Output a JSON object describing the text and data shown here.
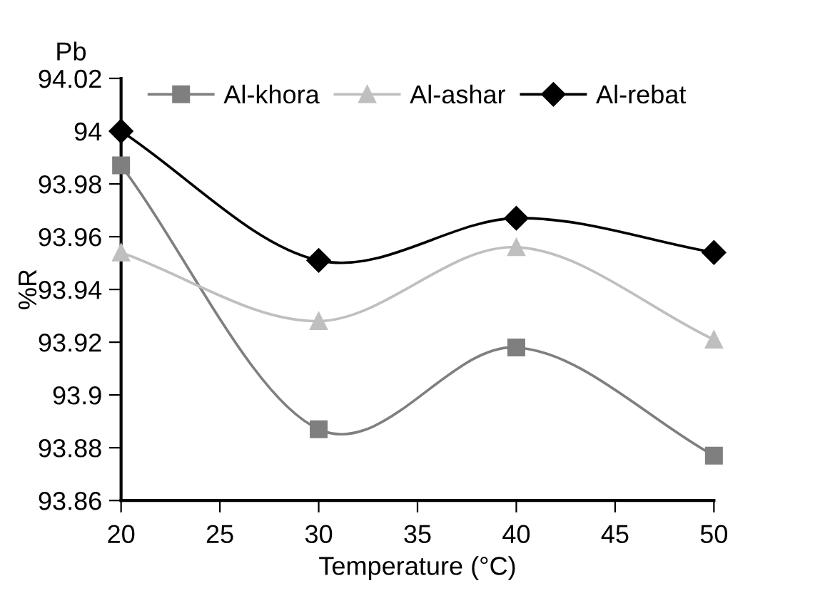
{
  "chart_data": {
    "type": "line",
    "title": "Pb",
    "xlabel": "Temperature (°C)",
    "ylabel": "%R",
    "x": [
      20,
      30,
      40,
      50
    ],
    "series": [
      {
        "name": "Al-khora",
        "color": "#7f7f7f",
        "marker": "square",
        "values": [
          93.987,
          93.887,
          93.918,
          93.877
        ]
      },
      {
        "name": "Al-ashar",
        "color": "#bfbfbf",
        "marker": "triangle",
        "values": [
          93.954,
          93.928,
          93.956,
          93.921
        ]
      },
      {
        "name": "Al-rebat",
        "color": "#000000",
        "marker": "diamond",
        "values": [
          94.0,
          93.951,
          93.967,
          93.954
        ]
      }
    ],
    "xlim": [
      20,
      50
    ],
    "xticks": [
      20,
      25,
      30,
      35,
      40,
      45,
      50
    ],
    "ylim": [
      93.86,
      94.02
    ],
    "yticks": [
      93.86,
      93.88,
      93.9,
      93.92,
      93.94,
      93.96,
      93.98,
      94,
      94.02
    ],
    "grid": false,
    "legend": "top",
    "line_style": "solid"
  }
}
